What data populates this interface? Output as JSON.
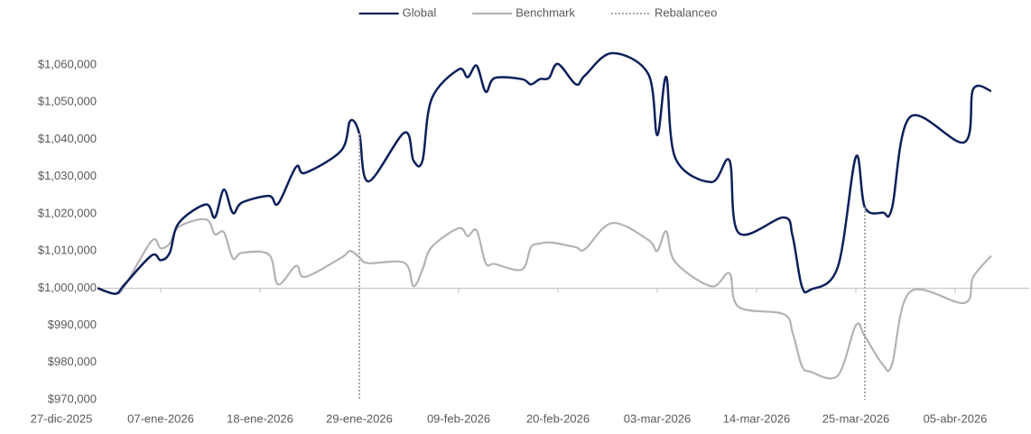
{
  "chart_data": {
    "type": "line",
    "x": [
      "2025-12-31",
      "2026-01-02",
      "2026-01-03",
      "2026-01-06",
      "2026-01-07",
      "2026-01-08",
      "2026-01-09",
      "2026-01-12",
      "2026-01-13",
      "2026-01-14",
      "2026-01-15",
      "2026-01-16",
      "2026-01-19",
      "2026-01-20",
      "2026-01-22",
      "2026-01-23",
      "2026-01-27",
      "2026-01-28",
      "2026-01-29",
      "2026-01-30",
      "2026-02-03",
      "2026-02-04",
      "2026-02-05",
      "2026-02-06",
      "2026-02-09",
      "2026-02-10",
      "2026-02-11",
      "2026-02-12",
      "2026-02-13",
      "2026-02-16",
      "2026-02-17",
      "2026-02-18",
      "2026-02-19",
      "2026-02-20",
      "2026-02-22",
      "2026-02-23",
      "2026-02-26",
      "2026-03-02",
      "2026-03-03",
      "2026-03-04",
      "2026-03-05",
      "2026-03-09",
      "2026-03-11",
      "2026-03-12",
      "2026-03-17",
      "2026-03-18",
      "2026-03-19",
      "2026-03-20",
      "2026-03-23",
      "2026-03-25",
      "2026-03-26",
      "2026-03-28",
      "2026-03-29",
      "2026-03-31",
      "2026-04-06",
      "2026-04-07",
      "2026-04-09"
    ],
    "series": [
      {
        "name": "Global",
        "color": "#0c1f5b",
        "values": [
          1000000,
          998500,
          1001000,
          1008800,
          1007500,
          1009500,
          1017500,
          1022500,
          1019000,
          1026500,
          1020200,
          1023000,
          1024800,
          1022700,
          1032600,
          1031000,
          1037000,
          1045000,
          1041600,
          1028700,
          1041800,
          1034300,
          1034300,
          1050800,
          1058800,
          1056700,
          1059800,
          1052800,
          1056500,
          1056200,
          1054800,
          1056200,
          1056500,
          1060300,
          1054800,
          1057200,
          1063200,
          1057600,
          1041100,
          1056800,
          1035000,
          1028500,
          1034300,
          1014900,
          1019000,
          1013900,
          1000600,
          999600,
          1005700,
          1035300,
          1021700,
          1020300,
          1021500,
          1046000,
          1039200,
          1053500,
          1053000
        ]
      },
      {
        "name": "Benchmark",
        "color": "#b3b3b3",
        "values": [
          1000000,
          998500,
          1000500,
          1012700,
          1010700,
          1012000,
          1016500,
          1018500,
          1014500,
          1015000,
          1008000,
          1009500,
          1009000,
          1001000,
          1006000,
          1003000,
          1008200,
          1010000,
          1008300,
          1006700,
          1006800,
          1000500,
          1005000,
          1011000,
          1016100,
          1014000,
          1015500,
          1006700,
          1006500,
          1005000,
          1011000,
          1012000,
          1012300,
          1012000,
          1011000,
          1010500,
          1017500,
          1013000,
          1010000,
          1015300,
          1007000,
          1000500,
          1004000,
          995000,
          993000,
          988000,
          979200,
          977500,
          976500,
          990000,
          987000,
          979400,
          979500,
          999000,
          996000,
          1003000,
          1008700
        ]
      },
      {
        "name": "Rebalanceo",
        "color": "#a6a6a6",
        "dash": "dotted",
        "x": [
          "2026-01-29",
          "2026-03-26"
        ],
        "values": [
          1041600,
          1021700
        ]
      }
    ],
    "xlim": [
      "2025-12-27",
      "2026-04-13"
    ],
    "xticks": [
      {
        "value": "2025-12-27",
        "label": "27-dic-2025"
      },
      {
        "value": "2026-01-07",
        "label": "07-ene-2026"
      },
      {
        "value": "2026-01-18",
        "label": "18-ene-2026"
      },
      {
        "value": "2026-01-29",
        "label": "29-ene-2026"
      },
      {
        "value": "2026-02-09",
        "label": "09-feb-2026"
      },
      {
        "value": "2026-02-20",
        "label": "20-feb-2026"
      },
      {
        "value": "2026-03-03",
        "label": "03-mar-2026"
      },
      {
        "value": "2026-03-14",
        "label": "14-mar-2026"
      },
      {
        "value": "2026-03-25",
        "label": "25-mar-2026"
      },
      {
        "value": "2026-04-05",
        "label": "05-abr-2026"
      }
    ],
    "ylim": [
      970000,
      1070000
    ],
    "yticks": [
      {
        "value": 970000,
        "label": "$970,000"
      },
      {
        "value": 980000,
        "label": "$980,000"
      },
      {
        "value": 990000,
        "label": "$990,000"
      },
      {
        "value": 1000000,
        "label": "$1,000,000"
      },
      {
        "value": 1010000,
        "label": "$1,010,000"
      },
      {
        "value": 1020000,
        "label": "$1,020,000"
      },
      {
        "value": 1030000,
        "label": "$1,030,000"
      },
      {
        "value": 1040000,
        "label": "$1,040,000"
      },
      {
        "value": 1050000,
        "label": "$1,050,000"
      },
      {
        "value": 1060000,
        "label": "$1,060,000"
      }
    ],
    "xaxis_at": 1000000,
    "legend": "top"
  }
}
